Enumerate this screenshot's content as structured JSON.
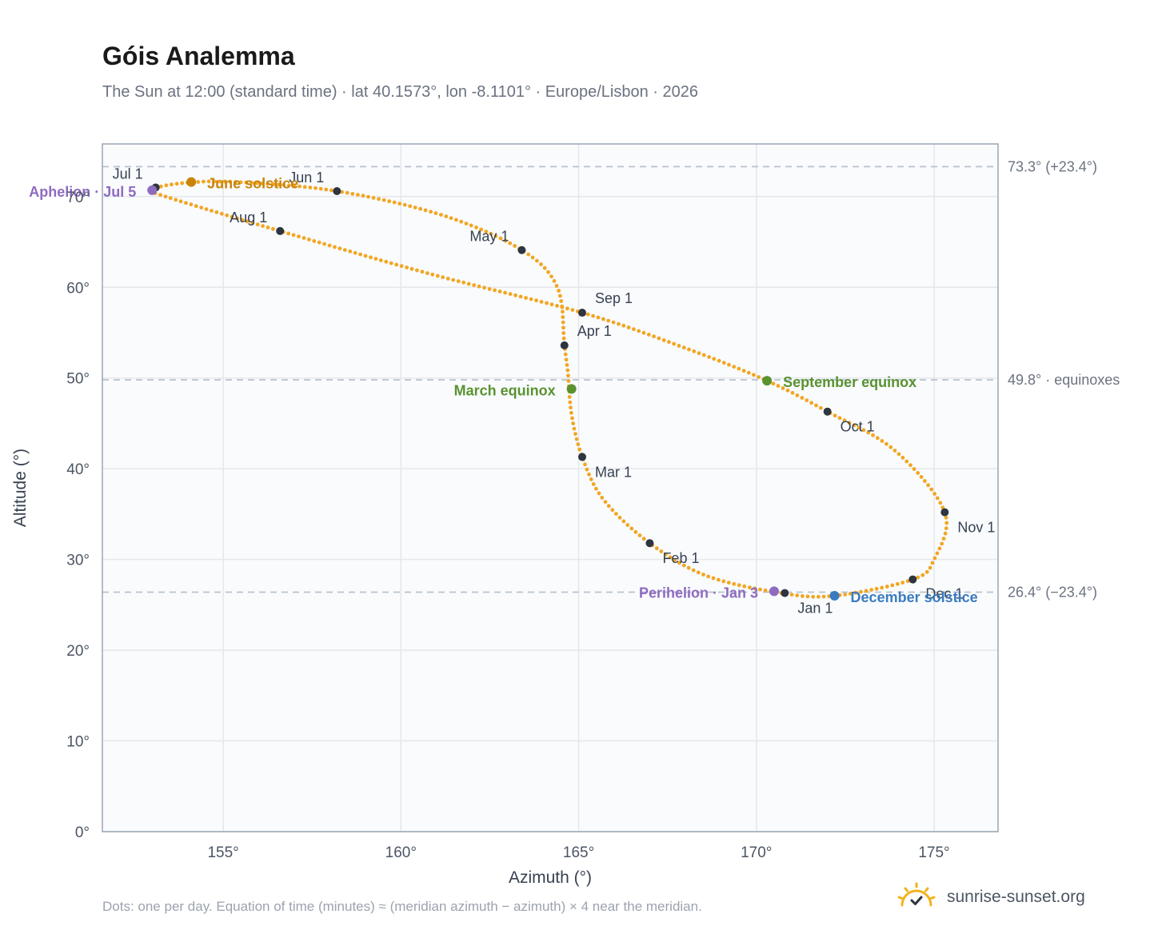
{
  "header": {
    "title": "Góis Analemma",
    "subtitle": "The Sun at 12:00 (standard time) · lat 40.1573°, lon -8.1101° · Europe/Lisbon · 2026"
  },
  "footer": {
    "note": "Dots: one per day. Equation of time (minutes) ≈ (meridian azimuth − azimuth) × 4 near the meridian.",
    "brand": "sunrise-sunset.org",
    "brand_icon": "sun-check-icon"
  },
  "colors": {
    "path": "#f2a623",
    "month_marker": "#2d3540",
    "june_solstice": "#c8850c",
    "december_solstice": "#3b7bbf",
    "equinox": "#5a9230",
    "apsis": "#8e6bbf",
    "grid": "#e5e7eb",
    "plot_bg": "#f9fbfd",
    "plot_border": "#9aa5b4",
    "ref_line": "#b8c2ce"
  },
  "chart_data": {
    "type": "scatter",
    "xlabel": "Azimuth (°)",
    "ylabel": "Altitude (°)",
    "xlim": [
      151.6,
      176.8
    ],
    "ylim": [
      0,
      75.8
    ],
    "xticks": [
      155,
      160,
      165,
      170,
      175
    ],
    "xtick_labels": [
      "155°",
      "160°",
      "165°",
      "170°",
      "175°"
    ],
    "yticks": [
      0,
      10,
      20,
      30,
      40,
      50,
      60,
      70
    ],
    "ytick_labels": [
      "0°",
      "10°",
      "20°",
      "30°",
      "40°",
      "50°",
      "60°",
      "70°"
    ],
    "grid": true,
    "reference_lines": [
      {
        "altitude": 73.3,
        "label": "73.3° (+23.4°)"
      },
      {
        "altitude": 49.8,
        "label": "49.8° · equinoxes"
      },
      {
        "altitude": 26.4,
        "label": "26.4° (−23.4°)"
      }
    ],
    "path_anchors": [
      {
        "az": 170.7,
        "alt": 26.3
      },
      {
        "az": 168.6,
        "alt": 28.2
      },
      {
        "az": 167.0,
        "alt": 31.8
      },
      {
        "az": 165.7,
        "alt": 36.6
      },
      {
        "az": 165.1,
        "alt": 41.3
      },
      {
        "az": 164.8,
        "alt": 46.0
      },
      {
        "az": 164.7,
        "alt": 50.5
      },
      {
        "az": 164.6,
        "alt": 53.6
      },
      {
        "az": 164.4,
        "alt": 60.0
      },
      {
        "az": 163.4,
        "alt": 64.1
      },
      {
        "az": 161.2,
        "alt": 67.9
      },
      {
        "az": 158.2,
        "alt": 70.6
      },
      {
        "az": 155.4,
        "alt": 71.6
      },
      {
        "az": 153.9,
        "alt": 71.5
      },
      {
        "az": 153.0,
        "alt": 70.8
      },
      {
        "az": 153.3,
        "alt": 70.1
      },
      {
        "az": 156.6,
        "alt": 66.2
      },
      {
        "az": 160.8,
        "alt": 61.5
      },
      {
        "az": 165.1,
        "alt": 57.2
      },
      {
        "az": 168.0,
        "alt": 53.3
      },
      {
        "az": 170.3,
        "alt": 49.7
      },
      {
        "az": 172.0,
        "alt": 46.3
      },
      {
        "az": 173.9,
        "alt": 42.0
      },
      {
        "az": 175.3,
        "alt": 35.2
      },
      {
        "az": 175.0,
        "alt": 30.0
      },
      {
        "az": 174.4,
        "alt": 27.8
      },
      {
        "az": 172.2,
        "alt": 26.0
      },
      {
        "az": 170.7,
        "alt": 26.3
      }
    ],
    "month_markers": [
      {
        "label": "Jan 1",
        "az": 170.8,
        "alt": 26.3,
        "anchor": "below-right"
      },
      {
        "label": "Feb 1",
        "az": 167.0,
        "alt": 31.8,
        "anchor": "below-right"
      },
      {
        "label": "Mar 1",
        "az": 165.1,
        "alt": 41.3,
        "anchor": "below-right"
      },
      {
        "label": "Apr 1",
        "az": 164.6,
        "alt": 53.6,
        "anchor": "above-right"
      },
      {
        "label": "May 1",
        "az": 163.4,
        "alt": 64.1,
        "anchor": "above-left"
      },
      {
        "label": "Jun 1",
        "az": 158.2,
        "alt": 70.6,
        "anchor": "above-left"
      },
      {
        "label": "Jul 1",
        "az": 153.1,
        "alt": 71.0,
        "anchor": "above-left"
      },
      {
        "label": "Aug 1",
        "az": 156.6,
        "alt": 66.2,
        "anchor": "above-left"
      },
      {
        "label": "Sep 1",
        "az": 165.1,
        "alt": 57.2,
        "anchor": "above-right"
      },
      {
        "label": "Oct 1",
        "az": 172.0,
        "alt": 46.3,
        "anchor": "below-right"
      },
      {
        "label": "Nov 1",
        "az": 175.3,
        "alt": 35.2,
        "anchor": "below-right"
      },
      {
        "label": "Dec 1",
        "az": 174.4,
        "alt": 27.8,
        "anchor": "right"
      }
    ],
    "events": [
      {
        "label": "June solstice",
        "az": 154.1,
        "alt": 71.6,
        "color": "june_solstice",
        "side": "right"
      },
      {
        "label": "March equinox",
        "az": 164.8,
        "alt": 48.8,
        "color": "equinox",
        "side": "left"
      },
      {
        "label": "September equinox",
        "az": 170.3,
        "alt": 49.7,
        "color": "equinox",
        "side": "right"
      },
      {
        "label": "December solstice",
        "az": 172.2,
        "alt": 26.0,
        "color": "december_solstice",
        "side": "right"
      },
      {
        "label": "Aphelion · Jul 5",
        "az": 153.0,
        "alt": 70.7,
        "color": "apsis",
        "side": "left"
      },
      {
        "label": "Perihelion · Jan 3",
        "az": 170.5,
        "alt": 26.5,
        "color": "apsis",
        "side": "left"
      }
    ]
  }
}
